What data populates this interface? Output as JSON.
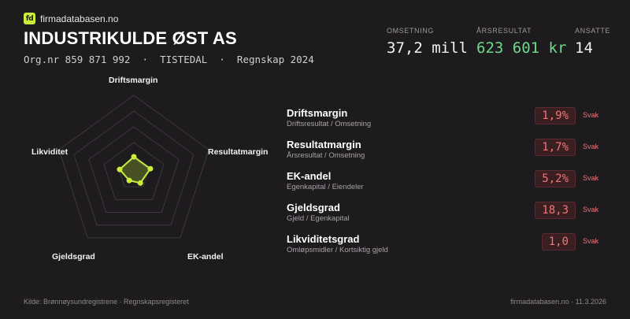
{
  "brand": {
    "name": "firmadatabasen.no",
    "logo_text": "fd",
    "accent": "#c8f03a"
  },
  "company": {
    "name": "INDUSTRIKULDE ØST AS",
    "meta": "Org.nr 859 871 992  ·  TISTEDAL  ·  Regnskap 2024"
  },
  "stats": [
    {
      "label": "OMSETNING",
      "value": "37,2 mill"
    },
    {
      "label": "ÅRSRESULTAT",
      "value": "623 601 kr",
      "color": "#6fd98a"
    },
    {
      "label": "ANSATTE",
      "value": "14"
    }
  ],
  "radar": {
    "axes": [
      "Driftsmargin",
      "Resultatmargin",
      "EK-andel",
      "Gjeldsgrad",
      "Likviditet"
    ],
    "values": [
      0.22,
      0.22,
      0.14,
      0.1,
      0.19
    ],
    "color": "#c8f03a"
  },
  "metrics": [
    {
      "title": "Driftsmargin",
      "subtitle": "Driftsresultat / Omsetning",
      "value": "1,9%",
      "rating": "Svak"
    },
    {
      "title": "Resultatmargin",
      "subtitle": "Årsresultat / Omsetning",
      "value": "1,7%",
      "rating": "Svak"
    },
    {
      "title": "EK-andel",
      "subtitle": "Egenkapital / Eiendeler",
      "value": "5,2%",
      "rating": "Svak"
    },
    {
      "title": "Gjeldsgrad",
      "subtitle": "Gjeld / Egenkapital",
      "value": "18,3",
      "rating": "Svak"
    },
    {
      "title": "Likviditetsgrad",
      "subtitle": "Omløpsmidler / Kortsiktig gjeld",
      "value": "1,0",
      "rating": "Svak"
    }
  ],
  "footer": {
    "source": "Kilde: Brønnøysundregistrene · Regnskapsregisteret",
    "site_date": "firmadatabasen.no · 11.3.2026"
  }
}
